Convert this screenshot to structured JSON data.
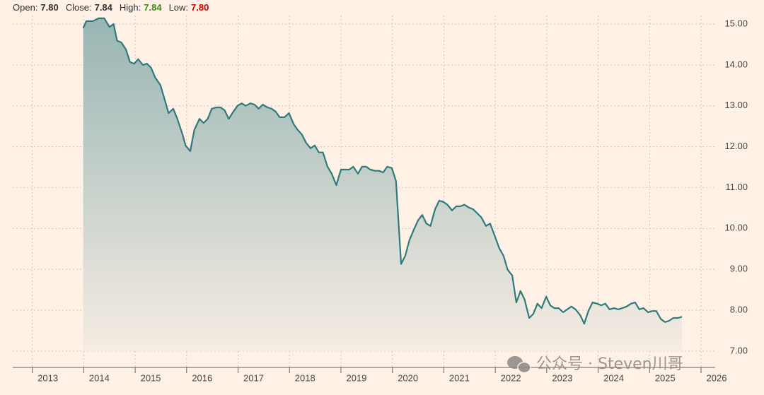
{
  "chart_data": {
    "type": "area",
    "stats": [
      {
        "label": "Open:",
        "value": 7.8,
        "value_label": "7.80",
        "color": "#33302e"
      },
      {
        "label": "Close:",
        "value": 7.84,
        "value_label": "7.84",
        "color": "#33302e"
      },
      {
        "label": "High:",
        "value": 7.84,
        "value_label": "7.84",
        "color": "#3f8a1f"
      },
      {
        "label": "Low:",
        "value": 7.8,
        "value_label": "7.80",
        "color": "#cc0000"
      }
    ],
    "x": [
      2013.99,
      2014.05,
      2014.18,
      2014.29,
      2014.4,
      2014.5,
      2014.58,
      2014.65,
      2014.73,
      2014.82,
      2014.9,
      2014.98,
      2015.06,
      2015.15,
      2015.23,
      2015.31,
      2015.39,
      2015.49,
      2015.57,
      2015.65,
      2015.74,
      2015.82,
      2015.92,
      2015.98,
      2016.07,
      2016.15,
      2016.25,
      2016.33,
      2016.41,
      2016.49,
      2016.58,
      2016.66,
      2016.74,
      2016.82,
      2016.91,
      2016.99,
      2017.07,
      2017.15,
      2017.24,
      2017.32,
      2017.4,
      2017.48,
      2017.57,
      2017.65,
      2017.73,
      2017.81,
      2017.9,
      2017.99,
      2018.08,
      2018.16,
      2018.24,
      2018.32,
      2018.41,
      2018.49,
      2018.57,
      2018.65,
      2018.74,
      2018.82,
      2018.91,
      2019.0,
      2019.08,
      2019.16,
      2019.24,
      2019.33,
      2019.41,
      2019.49,
      2019.57,
      2019.66,
      2019.74,
      2019.82,
      2019.9,
      2019.99,
      2020.07,
      2020.17,
      2020.25,
      2020.33,
      2020.41,
      2020.5,
      2020.58,
      2020.66,
      2020.74,
      2020.83,
      2020.91,
      2020.99,
      2021.07,
      2021.16,
      2021.24,
      2021.32,
      2021.4,
      2021.49,
      2021.57,
      2021.65,
      2021.73,
      2021.82,
      2021.9,
      2021.98,
      2022.08,
      2022.16,
      2022.24,
      2022.33,
      2022.41,
      2022.49,
      2022.57,
      2022.66,
      2022.74,
      2022.82,
      2022.9,
      2022.99,
      2023.07,
      2023.15,
      2023.23,
      2023.32,
      2023.4,
      2023.48,
      2023.56,
      2023.65,
      2023.73,
      2023.81,
      2023.89,
      2023.98,
      2024.06,
      2024.14,
      2024.22,
      2024.31,
      2024.39,
      2024.47,
      2024.55,
      2024.64,
      2024.72,
      2024.8,
      2024.88,
      2024.97,
      2025.05,
      2025.13,
      2025.22,
      2025.3,
      2025.38,
      2025.46,
      2025.55,
      2025.63
    ],
    "series": [
      {
        "color": "#2e7b7c",
        "values": [
          14.9,
          15.07,
          15.07,
          15.14,
          15.14,
          14.93,
          15.0,
          14.59,
          14.55,
          14.38,
          14.07,
          14.03,
          14.14,
          14.0,
          14.03,
          13.93,
          13.69,
          13.51,
          13.17,
          12.82,
          12.93,
          12.68,
          12.3,
          12.03,
          11.89,
          12.41,
          12.68,
          12.58,
          12.68,
          12.93,
          12.96,
          12.96,
          12.89,
          12.68,
          12.86,
          13.0,
          13.06,
          13.0,
          13.06,
          13.03,
          12.93,
          13.03,
          12.96,
          12.93,
          12.86,
          12.72,
          12.72,
          12.82,
          12.55,
          12.41,
          12.3,
          12.1,
          11.96,
          12.03,
          11.86,
          11.86,
          11.51,
          11.34,
          11.06,
          11.44,
          11.44,
          11.44,
          11.51,
          11.34,
          11.51,
          11.51,
          11.44,
          11.41,
          11.41,
          11.37,
          11.51,
          11.48,
          11.16,
          9.13,
          9.33,
          9.71,
          9.95,
          10.2,
          10.33,
          10.12,
          10.06,
          10.47,
          10.68,
          10.65,
          10.58,
          10.44,
          10.54,
          10.54,
          10.58,
          10.51,
          10.47,
          10.37,
          10.27,
          10.06,
          10.12,
          9.85,
          9.51,
          9.33,
          8.99,
          8.85,
          8.19,
          8.47,
          8.26,
          7.81,
          7.91,
          8.16,
          8.05,
          8.33,
          8.12,
          8.05,
          8.05,
          7.95,
          8.02,
          8.09,
          8.02,
          7.88,
          7.67,
          7.98,
          8.19,
          8.16,
          8.12,
          8.16,
          8.02,
          8.05,
          8.02,
          8.05,
          8.09,
          8.16,
          8.19,
          8.02,
          8.05,
          7.95,
          7.98,
          7.98,
          7.78,
          7.71,
          7.74,
          7.81,
          7.81,
          7.84
        ]
      }
    ],
    "xlim": [
      2012.62,
      2026
    ],
    "xticks": [
      2013,
      2014,
      2015,
      2016,
      2017,
      2018,
      2019,
      2020,
      2021,
      2022,
      2023,
      2024,
      2025,
      2026
    ],
    "ylim": [
      6.6,
      15
    ],
    "yticks": [
      {
        "value": 7,
        "label": "7.00"
      },
      {
        "value": 8,
        "label": "8.00"
      },
      {
        "value": 9,
        "label": "9.00"
      },
      {
        "value": 10,
        "label": "10.00"
      },
      {
        "value": 11,
        "label": "11.00"
      },
      {
        "value": 12,
        "label": "12.00"
      },
      {
        "value": 13,
        "label": "13.00"
      },
      {
        "value": 14,
        "label": "14.00"
      },
      {
        "value": 15,
        "label": "15.00"
      }
    ],
    "grid": true,
    "watermark": "公众号 · Steven川哥"
  }
}
